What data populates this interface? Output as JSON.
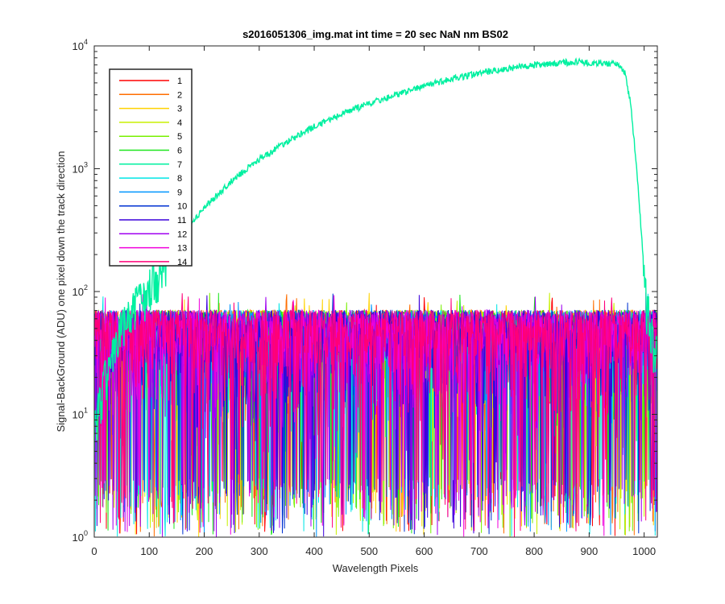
{
  "chart_data": {
    "type": "line",
    "title": "s2016051306_img.mat int time = 20 sec  NaN nm BS02",
    "xlabel": "Wavelength Pixels",
    "ylabel": "Signal-BackGround (ADU) one pixel down the track direction",
    "xlim": [
      0,
      1024
    ],
    "ylim": [
      1,
      10000
    ],
    "yscale": "log",
    "x_ticks": [
      0,
      100,
      200,
      300,
      400,
      500,
      600,
      700,
      800,
      900,
      1000
    ],
    "x_tick_labels": [
      "0",
      "100",
      "200",
      "300",
      "400",
      "500",
      "600",
      "700",
      "800",
      "900",
      "1000"
    ],
    "y_ticks": [
      {
        "value": 1,
        "base": "10",
        "exp": "0"
      },
      {
        "value": 10,
        "base": "10",
        "exp": "1"
      },
      {
        "value": 100,
        "base": "10",
        "exp": "2"
      },
      {
        "value": 1000,
        "base": "10",
        "exp": "3"
      },
      {
        "value": 10000,
        "base": "10",
        "exp": "4"
      }
    ],
    "legend_position": "top-left",
    "grid": false,
    "noise_range": [
      1,
      100
    ],
    "series": [
      {
        "name": "1",
        "color": "#ff0000",
        "kind": "noise"
      },
      {
        "name": "2",
        "color": "#ff6e00",
        "kind": "noise"
      },
      {
        "name": "3",
        "color": "#ffd200",
        "kind": "noise"
      },
      {
        "name": "4",
        "color": "#c8f000",
        "kind": "noise"
      },
      {
        "name": "5",
        "color": "#78f000",
        "kind": "noise"
      },
      {
        "name": "6",
        "color": "#1ee61e",
        "kind": "noise"
      },
      {
        "name": "7",
        "color": "#00f0a0",
        "kind": "signal",
        "x": [
          0,
          20,
          50,
          80,
          100,
          130,
          160,
          200,
          250,
          300,
          350,
          400,
          450,
          500,
          550,
          600,
          650,
          700,
          750,
          800,
          850,
          880,
          900,
          920,
          940,
          955,
          965,
          975,
          985,
          995,
          1005,
          1015,
          1024
        ],
        "y": [
          8,
          20,
          50,
          80,
          110,
          190,
          290,
          480,
          800,
          1200,
          1650,
          2200,
          2800,
          3400,
          4000,
          4700,
          5400,
          6000,
          6500,
          7000,
          7300,
          7400,
          7300,
          7300,
          7200,
          7000,
          6000,
          3500,
          1200,
          300,
          80,
          40,
          30
        ]
      },
      {
        "name": "8",
        "color": "#00e6e6",
        "kind": "noise"
      },
      {
        "name": "9",
        "color": "#0096ff",
        "kind": "noise"
      },
      {
        "name": "10",
        "color": "#0032d2",
        "kind": "noise"
      },
      {
        "name": "11",
        "color": "#3c00dc",
        "kind": "noise"
      },
      {
        "name": "12",
        "color": "#a000f0",
        "kind": "noise"
      },
      {
        "name": "13",
        "color": "#f000dc",
        "kind": "noise"
      },
      {
        "name": "14",
        "color": "#ff0078",
        "kind": "noise"
      }
    ]
  }
}
